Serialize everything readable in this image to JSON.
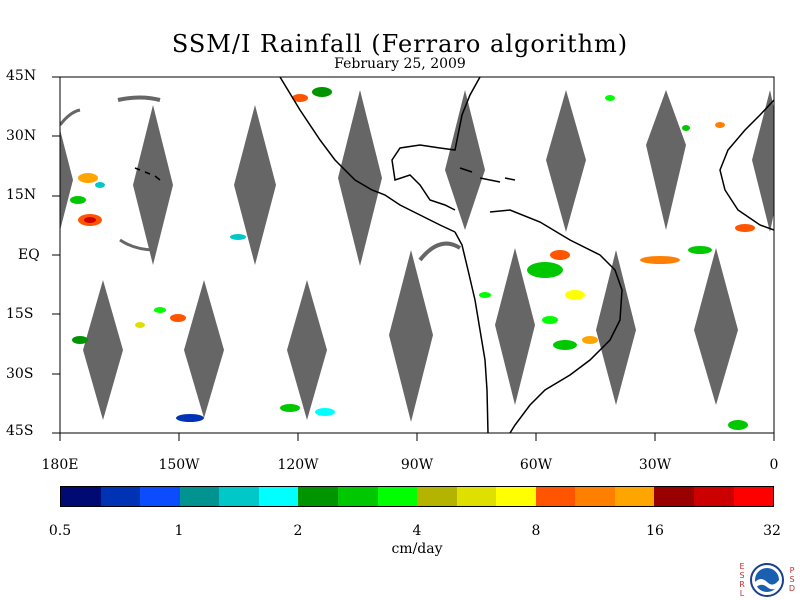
{
  "title": "SSM/I Rainfall (Ferraro algorithm)",
  "subtitle": "February 25, 2009",
  "map": {
    "lon_range": [
      -180,
      0
    ],
    "lat_range": [
      -45,
      45
    ],
    "lat_labels": [
      "45N",
      "30N",
      "15N",
      "EQ",
      "15S",
      "30S",
      "45S"
    ],
    "lon_labels": [
      "180E",
      "150W",
      "120W",
      "90W",
      "60W",
      "30W",
      "0"
    ],
    "swath_gap_color": "#666666",
    "coastline_color": "#000000"
  },
  "colorbar": {
    "colors": [
      "#000a73",
      "#0033b3",
      "#0b4cff",
      "#00938f",
      "#00c8c8",
      "#00ffff",
      "#009400",
      "#00c800",
      "#00ff00",
      "#b3b300",
      "#e0e000",
      "#ffff00",
      "#ff5500",
      "#ff7f00",
      "#ffa500",
      "#990000",
      "#cc0000",
      "#ff0000"
    ],
    "labels": [
      "0.5",
      "1",
      "2",
      "4",
      "8",
      "16",
      "32"
    ],
    "units": "cm/day"
  },
  "logo": {
    "left_letters": [
      "E",
      "S",
      "R",
      "L"
    ],
    "right_letters": [
      "P",
      "S",
      "D"
    ],
    "icon": "noaa-logo"
  }
}
